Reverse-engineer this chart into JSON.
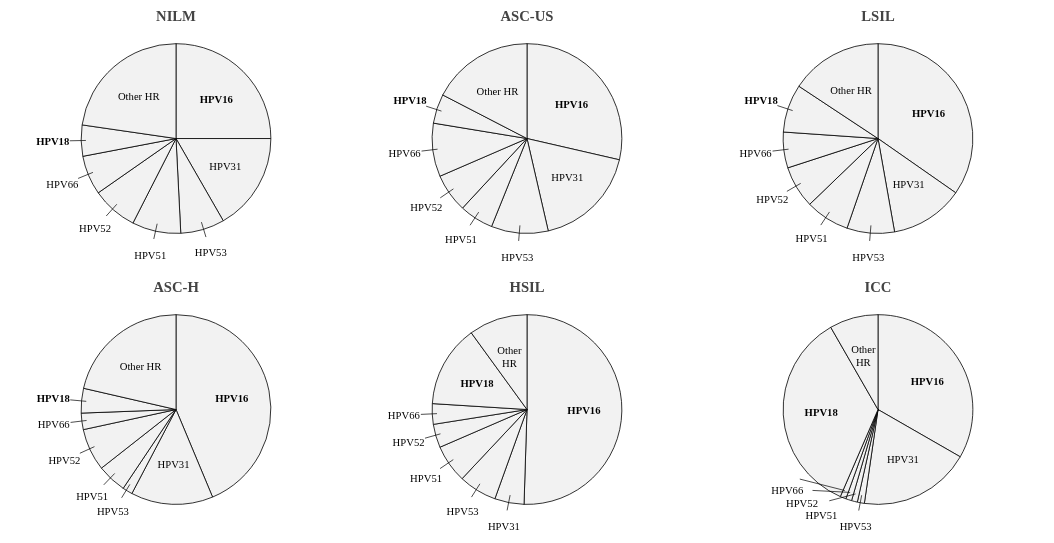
{
  "chart_data": [
    {
      "type": "pie",
      "title": "NILM",
      "categories": [
        "HPV16",
        "HPV31",
        "HPV53",
        "HPV51",
        "HPV52",
        "HPV66",
        "HPV18",
        "Other HR"
      ],
      "values": [
        25,
        16.7,
        7.5,
        8.3,
        7.8,
        6.7,
        5.3,
        22.7
      ],
      "colors": [
        "#f2f2f2",
        "#f2f2f2",
        "#f2f2f2",
        "#f2f2f2",
        "#f2f2f2",
        "#f2f2f2",
        "#f2f2f2",
        "#f2f2f2"
      ]
    },
    {
      "type": "pie",
      "title": "ASC-US",
      "categories": [
        "HPV16",
        "HPV31",
        "HPV53",
        "HPV51",
        "HPV52",
        "HPV66",
        "HPV18",
        "Other HR"
      ],
      "values": [
        28.6,
        17.8,
        9.7,
        5.8,
        6.6,
        9.1,
        5,
        17.4
      ],
      "colors": [
        "#f2f2f2",
        "#f2f2f2",
        "#f2f2f2",
        "#f2f2f2",
        "#f2f2f2",
        "#f2f2f2",
        "#f2f2f2",
        "#f2f2f2"
      ]
    },
    {
      "type": "pie",
      "title": "LSIL",
      "categories": [
        "HPV16",
        "HPV31",
        "HPV53",
        "HPV51",
        "HPV52",
        "HPV66",
        "HPV18",
        "Other HR"
      ],
      "values": [
        34.7,
        12.5,
        8.1,
        7.5,
        7.2,
        6.1,
        8.2,
        15.7
      ],
      "colors": [
        "#f2f2f2",
        "#f2f2f2",
        "#f2f2f2",
        "#f2f2f2",
        "#f2f2f2",
        "#f2f2f2",
        "#f2f2f2",
        "#f2f2f2"
      ]
    },
    {
      "type": "pie",
      "title": "ASC-H",
      "categories": [
        "HPV16",
        "HPV31",
        "HPV53",
        "HPV51",
        "HPV52",
        "HPV66",
        "HPV18",
        "Other HR"
      ],
      "values": [
        43.7,
        14,
        1.7,
        5,
        7.2,
        2.8,
        4.2,
        21.4
      ],
      "colors": [
        "#f2f2f2",
        "#f2f2f2",
        "#f2f2f2",
        "#f2f2f2",
        "#f2f2f2",
        "#f2f2f2",
        "#f2f2f2",
        "#f2f2f2"
      ]
    },
    {
      "type": "pie",
      "title": "HSIL",
      "categories": [
        "HPV16",
        "HPV31",
        "HPV53",
        "HPV51",
        "HPV52",
        "HPV66",
        "HPV18",
        "Other HR"
      ],
      "values": [
        50.5,
        5,
        6.5,
        6.5,
        4,
        3.5,
        14,
        10
      ],
      "colors": [
        "#f2f2f2",
        "#f2f2f2",
        "#f2f2f2",
        "#f2f2f2",
        "#f2f2f2",
        "#f2f2f2",
        "#f2f2f2",
        "#f2f2f2"
      ]
    },
    {
      "type": "pie",
      "title": "ICC",
      "categories": [
        "HPV16",
        "HPV31",
        "HPV53",
        "HPV51",
        "HPV52",
        "HPV66",
        "HPV18",
        "Other HR"
      ],
      "values": [
        33.3,
        19,
        1.2,
        1,
        1,
        1,
        35.2,
        8.3
      ],
      "colors": [
        "#f2f2f2",
        "#f2f2f2",
        "#f2f2f2",
        "#f2f2f2",
        "#f2f2f2",
        "#f2f2f2",
        "#f2f2f2",
        "#f2f2f2"
      ]
    }
  ]
}
